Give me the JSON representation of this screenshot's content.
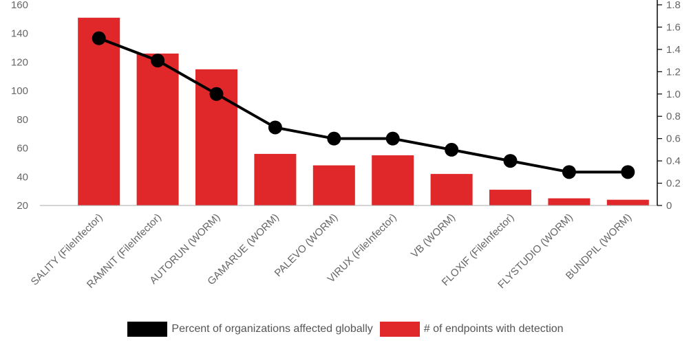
{
  "chart_data": {
    "type": "bar",
    "categories": [
      "SALITY (FileInfector)",
      "RAMNIT (FileInfector)",
      "AUTORUN (WORM)",
      "GAMARUE (WORM)",
      "PALEVO (WORM)",
      "VIRUX (FileInfector)",
      "VB (WORM)",
      "FLOXIF (FileInfector)",
      "FLYSTUDIO (WORM)",
      "BUNDPIL (WORM)"
    ],
    "series": [
      {
        "name": "# of endpoints with detection",
        "type": "bar",
        "axis": "left",
        "color": "#e0282a",
        "values": [
          151,
          126,
          115,
          56,
          48,
          55,
          42,
          31,
          25,
          24
        ]
      },
      {
        "name": "Percent of organizations affected globally",
        "type": "line",
        "axis": "right",
        "color": "#000000",
        "values": [
          1.5,
          1.3,
          1.0,
          0.7,
          0.6,
          0.6,
          0.5,
          0.4,
          0.3,
          0.3
        ]
      }
    ],
    "y_left": {
      "ticks": [
        "20",
        "40",
        "60",
        "80",
        "100",
        "120",
        "140",
        "160"
      ],
      "ylim": [
        20,
        160
      ]
    },
    "y_right": {
      "ticks": [
        "0",
        "0.2",
        "0.4",
        "0.6",
        "0.8",
        "1.0",
        "1.2",
        "1.4",
        "1.6",
        "1.8"
      ],
      "ylim": [
        0,
        1.8
      ]
    },
    "grid": false,
    "legend_position": "bottom"
  },
  "legend": {
    "line_label": "Percent of organizations affected globally",
    "bar_label": "# of endpoints with detection"
  }
}
